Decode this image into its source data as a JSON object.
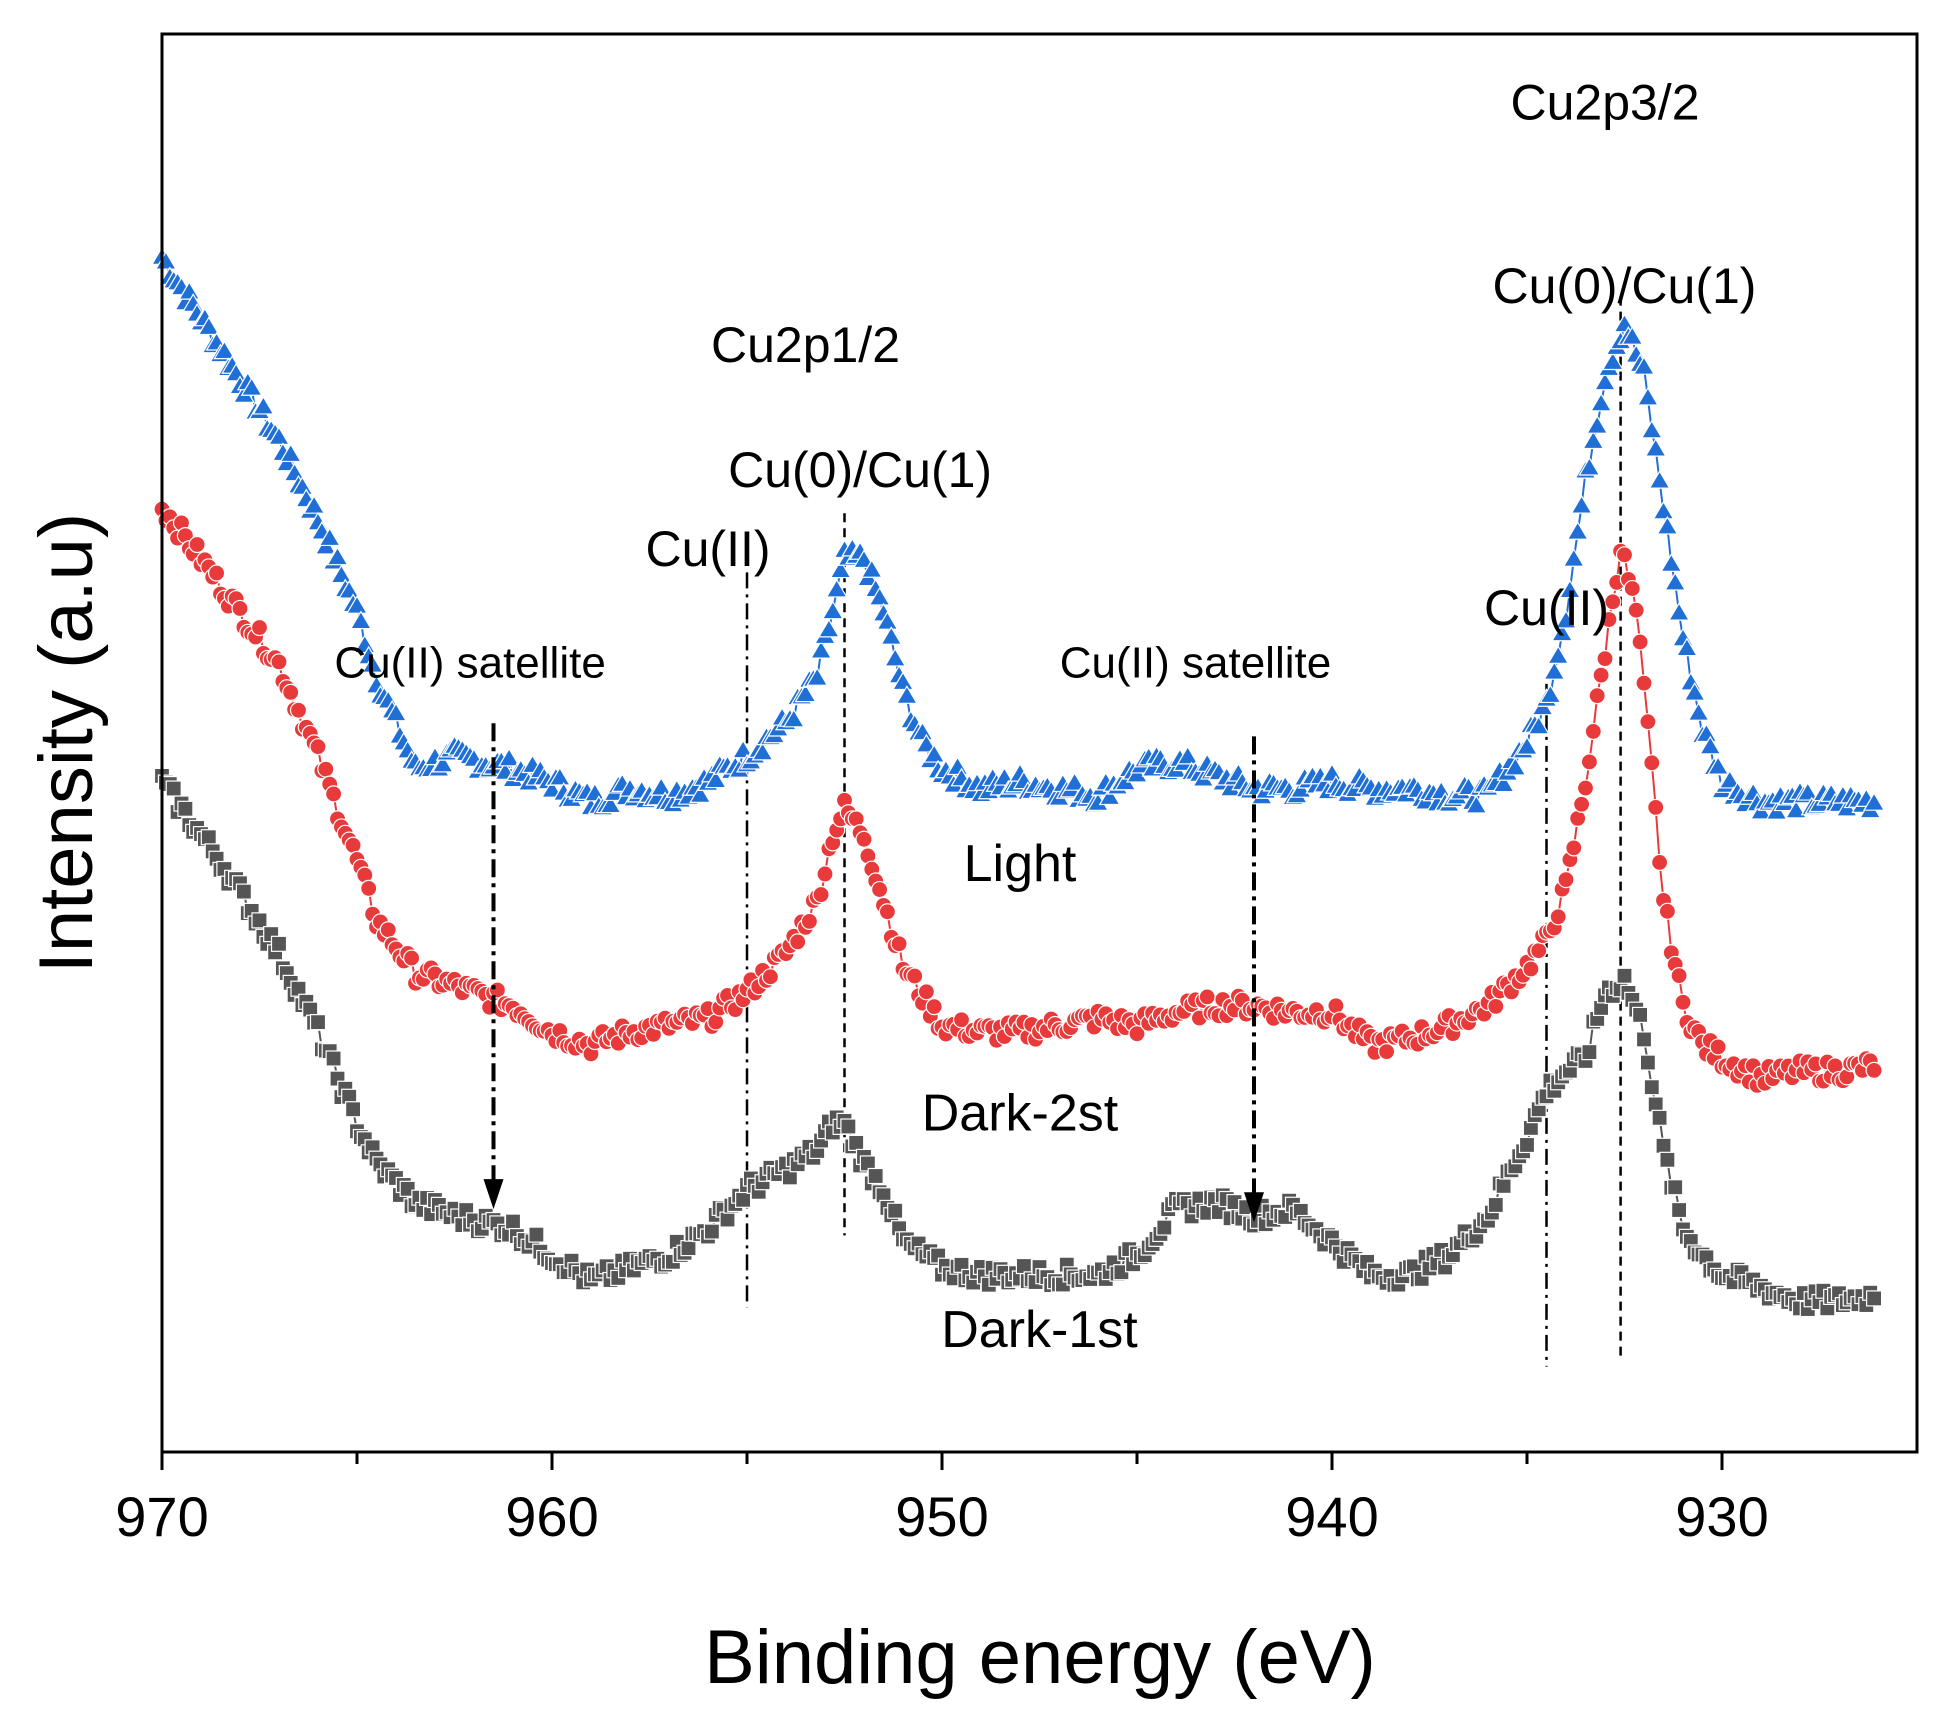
{
  "chart_data": {
    "type": "scatter",
    "title": "",
    "xlabel": "Binding energy (eV)",
    "ylabel": "Intensity (a.u)",
    "xlim": [
      970,
      925
    ],
    "x_reversed": true,
    "ylim": [
      -2,
      106
    ],
    "xticks": [
      970,
      960,
      950,
      940,
      930
    ],
    "minor_xticks": [
      965,
      955,
      945,
      935
    ],
    "ytick_labels_shown": false,
    "grid": false,
    "legend": "inline series labels",
    "series": [
      {
        "name": "Light",
        "color": "#1f6fd6",
        "marker": "triangle",
        "points": [
          [
            970,
            89
          ],
          [
            968.5,
            82
          ],
          [
            967,
            75
          ],
          [
            966,
            69
          ],
          [
            965,
            62
          ],
          [
            964.5,
            57
          ],
          [
            963.5,
            50
          ],
          [
            962.5,
            51
          ],
          [
            961,
            50
          ],
          [
            960,
            49
          ],
          [
            959,
            47.5
          ],
          [
            958,
            48.5
          ],
          [
            957,
            48
          ],
          [
            956,
            49
          ],
          [
            955,
            51
          ],
          [
            954,
            53.5
          ],
          [
            953.2,
            57
          ],
          [
            952.8,
            62
          ],
          [
            952.5,
            66
          ],
          [
            952,
            66
          ],
          [
            951.5,
            62
          ],
          [
            951,
            56
          ],
          [
            950.5,
            52
          ],
          [
            950,
            50
          ],
          [
            949,
            48.5
          ],
          [
            948,
            49
          ],
          [
            947,
            48.5
          ],
          [
            946,
            48
          ],
          [
            945,
            50
          ],
          [
            944,
            50.5
          ],
          [
            943,
            49.5
          ],
          [
            942,
            48.5
          ],
          [
            941,
            48.5
          ],
          [
            940,
            49
          ],
          [
            939,
            48.5
          ],
          [
            938,
            48.5
          ],
          [
            937,
            48
          ],
          [
            936,
            48
          ],
          [
            935.5,
            50
          ],
          [
            935,
            52
          ],
          [
            934.5,
            55
          ],
          [
            934,
            62
          ],
          [
            933.5,
            72
          ],
          [
            933,
            80
          ],
          [
            932.5,
            84
          ],
          [
            932,
            80
          ],
          [
            931.5,
            70
          ],
          [
            931,
            60
          ],
          [
            930.5,
            53
          ],
          [
            930,
            49
          ],
          [
            929,
            47.5
          ],
          [
            928,
            47.5
          ],
          [
            927,
            47.5
          ],
          [
            926,
            47.5
          ]
        ]
      },
      {
        "name": "Dark-2st",
        "color": "#e83a3a",
        "marker": "circle",
        "points": [
          [
            970,
            70
          ],
          [
            968.5,
            64
          ],
          [
            967,
            58
          ],
          [
            966,
            51
          ],
          [
            965,
            43
          ],
          [
            964.5,
            38.5
          ],
          [
            963.5,
            34.5
          ],
          [
            962.5,
            33.5
          ],
          [
            961,
            32
          ],
          [
            960,
            30
          ],
          [
            959,
            29
          ],
          [
            958,
            30
          ],
          [
            957,
            30.5
          ],
          [
            956,
            31
          ],
          [
            955,
            33
          ],
          [
            954,
            36
          ],
          [
            953.2,
            40
          ],
          [
            952.8,
            45
          ],
          [
            952.5,
            47
          ],
          [
            952,
            45
          ],
          [
            951.5,
            40
          ],
          [
            951,
            35
          ],
          [
            950,
            30.5
          ],
          [
            949,
            30
          ],
          [
            948,
            30
          ],
          [
            947,
            30.5
          ],
          [
            946,
            31
          ],
          [
            945,
            30.5
          ],
          [
            944,
            31.5
          ],
          [
            943,
            32
          ],
          [
            942,
            32
          ],
          [
            941,
            31.5
          ],
          [
            940,
            31.5
          ],
          [
            939,
            29
          ],
          [
            938,
            29.5
          ],
          [
            937,
            30.5
          ],
          [
            936,
            32
          ],
          [
            935,
            35
          ],
          [
            934.5,
            37
          ],
          [
            934,
            41
          ],
          [
            933.5,
            49
          ],
          [
            933,
            59
          ],
          [
            932.6,
            67
          ],
          [
            932.2,
            62
          ],
          [
            931.8,
            50
          ],
          [
            931.5,
            40
          ],
          [
            931,
            32
          ],
          [
            930.5,
            29
          ],
          [
            930,
            28
          ],
          [
            929,
            26.5
          ],
          [
            928,
            27
          ],
          [
            927,
            27
          ],
          [
            926,
            27.5
          ]
        ]
      },
      {
        "name": "Dark-1st",
        "color": "#555555",
        "marker": "square",
        "points": [
          [
            970,
            49
          ],
          [
            968.5,
            43
          ],
          [
            967,
            36
          ],
          [
            966,
            30
          ],
          [
            965,
            23
          ],
          [
            964.5,
            20
          ],
          [
            963.5,
            17
          ],
          [
            962.5,
            16
          ],
          [
            961,
            15
          ],
          [
            960,
            13
          ],
          [
            959,
            11
          ],
          [
            958,
            12
          ],
          [
            957,
            13
          ],
          [
            956,
            15
          ],
          [
            955,
            18
          ],
          [
            954,
            19.5
          ],
          [
            953.2,
            21
          ],
          [
            952.8,
            23
          ],
          [
            952.5,
            23
          ],
          [
            952,
            20
          ],
          [
            951.5,
            18
          ],
          [
            951,
            14
          ],
          [
            950,
            12
          ],
          [
            949,
            11.5
          ],
          [
            948,
            11.5
          ],
          [
            947,
            11.5
          ],
          [
            946,
            11.5
          ],
          [
            945,
            13
          ],
          [
            944,
            16.5
          ],
          [
            943,
            17
          ],
          [
            942,
            16
          ],
          [
            941,
            16.5
          ],
          [
            940,
            14
          ],
          [
            939,
            11.5
          ],
          [
            938,
            11.5
          ],
          [
            937,
            13
          ],
          [
            936,
            16
          ],
          [
            935.5,
            19
          ],
          [
            935,
            22
          ],
          [
            934.5,
            25.5
          ],
          [
            934,
            27
          ],
          [
            933.5,
            28
          ],
          [
            933,
            33
          ],
          [
            932.5,
            34
          ],
          [
            932,
            30
          ],
          [
            931.5,
            21
          ],
          [
            931,
            15
          ],
          [
            930.5,
            13
          ],
          [
            930,
            11.5
          ],
          [
            929,
            10.5
          ],
          [
            928,
            9.5
          ],
          [
            927,
            9.5
          ],
          [
            926,
            10
          ]
        ]
      }
    ],
    "series_labels": [
      {
        "text": "Light",
        "x": 948,
        "y": 41.5
      },
      {
        "text": "Dark-2st",
        "x": 948,
        "y": 22.5
      },
      {
        "text": "Dark-1st",
        "x": 947.5,
        "y": 6
      }
    ],
    "annotations": [
      {
        "text": "Cu2p3/2",
        "x": 933,
        "y": 99.5,
        "size": "lg"
      },
      {
        "text": "Cu(0)/Cu(1)",
        "x": 932.5,
        "y": 85.5,
        "size": "lg"
      },
      {
        "text": "Cu2p1/2",
        "x": 953.5,
        "y": 81,
        "size": "lg"
      },
      {
        "text": "Cu(0)/Cu(1)",
        "x": 952.1,
        "y": 71.5,
        "size": "lg"
      },
      {
        "text": "Cu(II)",
        "x": 956,
        "y": 65.5,
        "size": "lg"
      },
      {
        "text": "Cu(II)",
        "x": 934.5,
        "y": 61,
        "size": "lg"
      },
      {
        "text": "Cu(II) satellite",
        "x": 962.1,
        "y": 57,
        "size": "sm"
      },
      {
        "text": "Cu(II) satellite",
        "x": 943.5,
        "y": 57,
        "size": "sm"
      }
    ],
    "reference_lines": [
      {
        "style": "dashed",
        "x": 932.6,
        "y_from": 86,
        "y_to": 5
      },
      {
        "style": "dashed",
        "x": 952.5,
        "y_from": 69.5,
        "y_to": 14.5
      },
      {
        "style": "dashdot",
        "x": 955,
        "y_from": 65,
        "y_to": 9
      },
      {
        "style": "dashdot",
        "x": 934.5,
        "y_from": 56.5,
        "y_to": 4.5
      }
    ],
    "arrows": [
      {
        "x": 961.5,
        "y_from": 53.5,
        "y_to": 16.5
      },
      {
        "x": 942,
        "y_from": 52.5,
        "y_to": 15.5
      }
    ]
  }
}
